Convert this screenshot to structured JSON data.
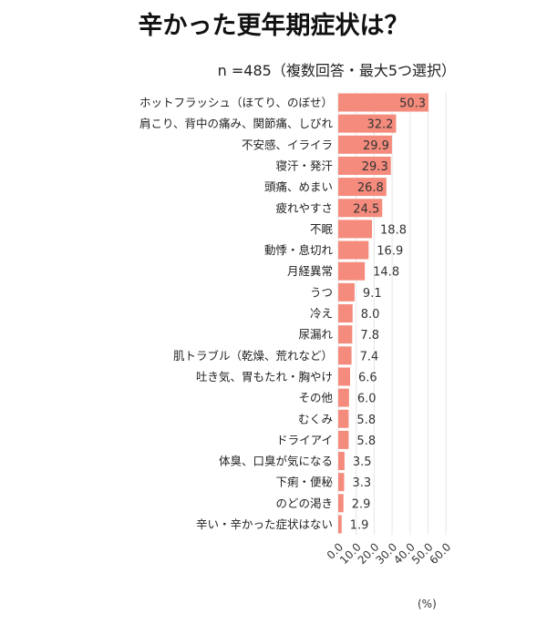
{
  "chart_data": {
    "type": "bar",
    "orientation": "horizontal",
    "title": "辛かった更年期症状は？",
    "subtitle": "n =485（複数回答・最大5つ選択）",
    "unit": "(%)",
    "categories": [
      "ホットフラッシュ（ほてり、のぼせ）",
      "肩こり、背中の痛み、関節痛、しびれ",
      "不安感、イライラ",
      "寝汗・発汗",
      "頭痛、めまい",
      "疲れやすさ",
      "不眠",
      "動悸・息切れ",
      "月経異常",
      "うつ",
      "冷え",
      "尿漏れ",
      "肌トラブル（乾燥、荒れなど）",
      "吐き気、胃もたれ・胸やけ",
      "その他",
      "むくみ",
      "ドライアイ",
      "体臭、口臭が気になる",
      "下痢・便秘",
      "のどの渇き",
      "辛い・辛かった症状はない"
    ],
    "values": [
      50.3,
      32.2,
      29.9,
      29.3,
      26.8,
      24.5,
      18.8,
      16.9,
      14.8,
      9.1,
      8.0,
      7.8,
      7.4,
      6.6,
      6.0,
      5.8,
      5.8,
      3.5,
      3.3,
      2.9,
      1.9
    ],
    "xlim": [
      0,
      60
    ],
    "xticks": [
      "0.0",
      "10.0",
      "20.0",
      "30.0",
      "40.0",
      "50.0",
      "60.0"
    ],
    "grid": true,
    "bar_color": "#F48B7C"
  }
}
